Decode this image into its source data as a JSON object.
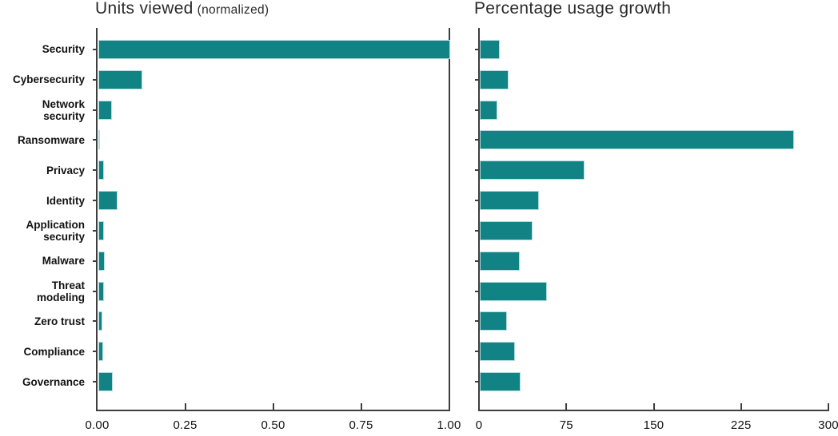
{
  "page": {
    "background": "#ffffff"
  },
  "colors": {
    "bar_fill": "#118384",
    "bar_edge": "#b5dcde",
    "axis_line": "#3e3e3e",
    "tick_text": "#141414",
    "category_text": "#121212",
    "title_text": "#2b2b2b"
  },
  "chart_data": [
    {
      "type": "bar",
      "orientation": "horizontal",
      "title": "Units viewed",
      "title_note": "(normalized)",
      "categories": [
        "Security",
        "Cybersecurity",
        "Network security",
        "Ransomware",
        "Privacy",
        "Identity",
        "Application security",
        "Malware",
        "Threat modeling",
        "Zero trust",
        "Compliance",
        "Governance"
      ],
      "category_label_lines": [
        [
          "Security"
        ],
        [
          "Cybersecurity"
        ],
        [
          "Network",
          "security"
        ],
        [
          "Ransomware"
        ],
        [
          "Privacy"
        ],
        [
          "Identity"
        ],
        [
          "Application",
          "security"
        ],
        [
          "Malware"
        ],
        [
          "Threat",
          "modeling"
        ],
        [
          "Zero trust"
        ],
        [
          "Compliance"
        ],
        [
          "Governance"
        ]
      ],
      "values": [
        1.0,
        0.125,
        0.038,
        0.005,
        0.016,
        0.055,
        0.017,
        0.019,
        0.017,
        0.011,
        0.014,
        0.041
      ],
      "xlim": [
        0,
        1
      ],
      "xtick_labels": [
        "0.00",
        "0.25",
        "0.50",
        "0.75",
        "1.00"
      ],
      "xtick_values": [
        0,
        0.25,
        0.5,
        0.75,
        1
      ],
      "xlabel": "",
      "ylabel": "",
      "grid": false,
      "legend": false
    },
    {
      "type": "bar",
      "orientation": "horizontal",
      "title": "Percentage usage growth",
      "title_note": "",
      "categories": [
        "Security",
        "Cybersecurity",
        "Network security",
        "Ransomware",
        "Privacy",
        "Identity",
        "Application security",
        "Malware",
        "Threat modeling",
        "Zero trust",
        "Compliance",
        "Governance"
      ],
      "values": [
        17,
        25,
        15,
        270,
        90,
        51,
        45,
        34,
        58,
        23,
        30,
        35
      ],
      "xlim": [
        0,
        300
      ],
      "xtick_labels": [
        "0",
        "75",
        "150",
        "225",
        "300"
      ],
      "xtick_values": [
        0,
        75,
        150,
        225,
        300
      ],
      "xlabel": "",
      "ylabel": "",
      "grid": false,
      "legend": false
    }
  ]
}
